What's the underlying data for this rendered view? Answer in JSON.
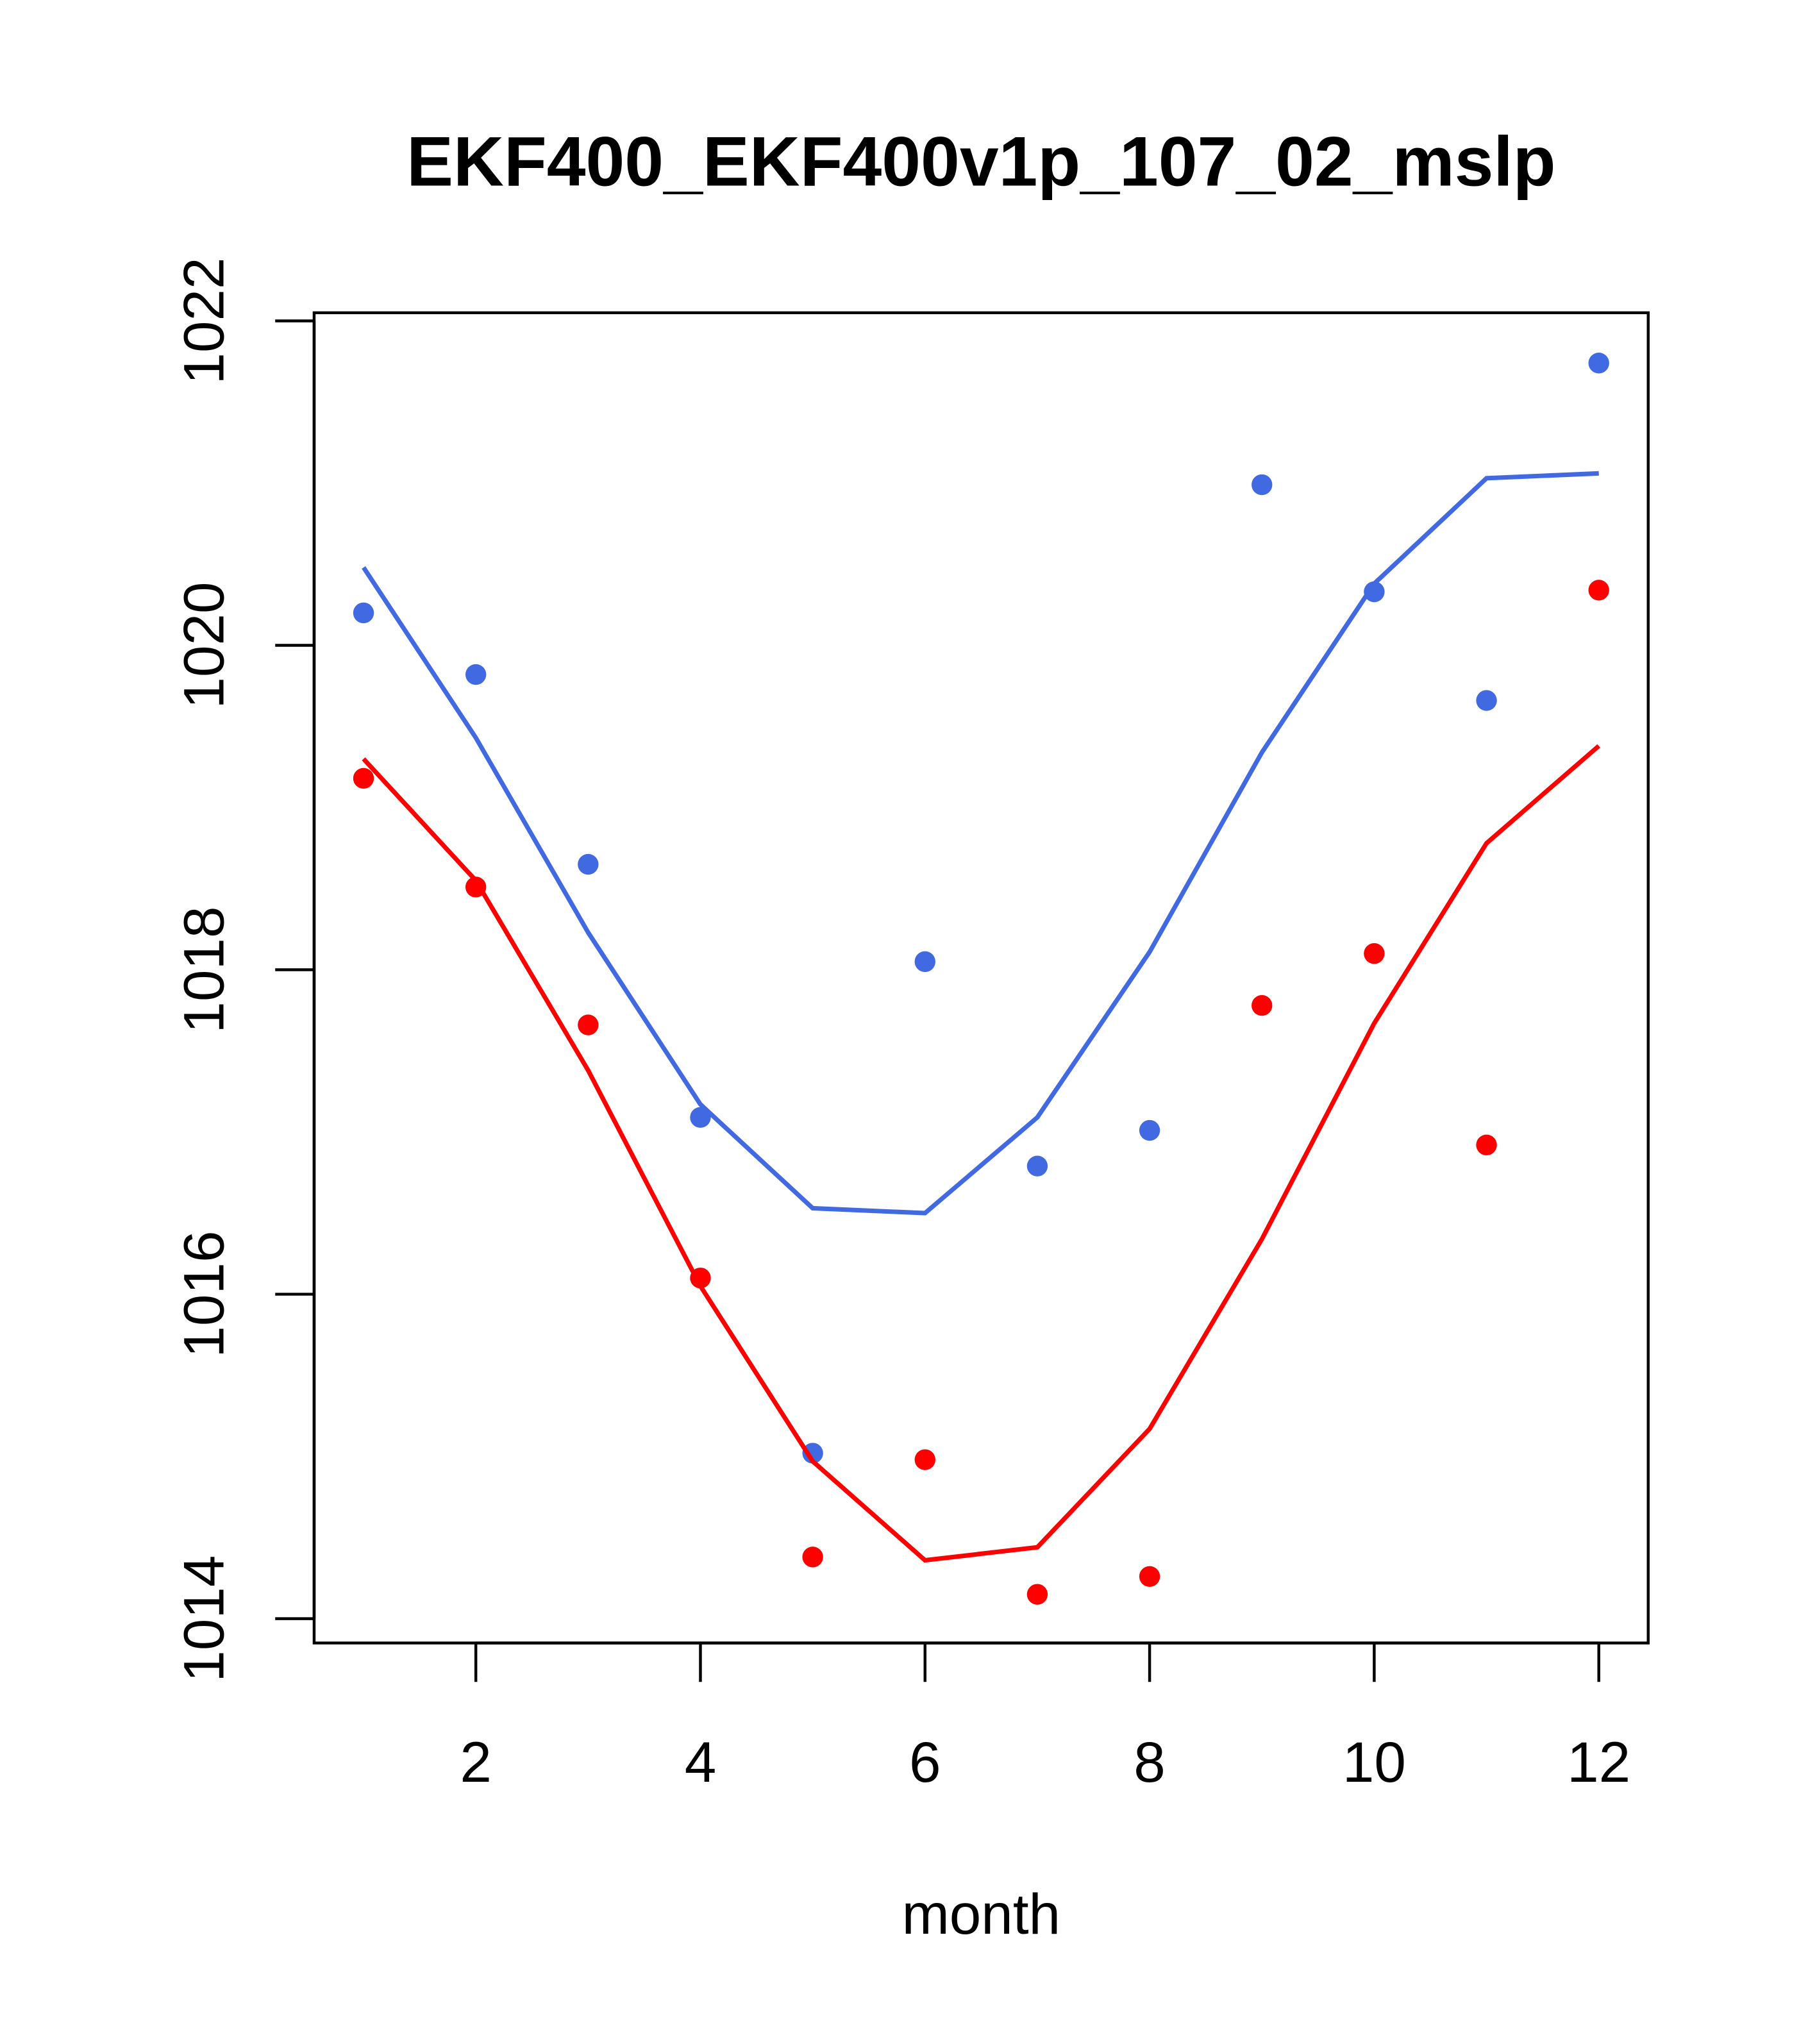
{
  "chart_data": {
    "type": "line",
    "title": "EKF400_EKF400v1p_107_02_mslp",
    "xlabel": "month",
    "ylabel": "",
    "xlim": [
      0.56,
      12.44
    ],
    "ylim": [
      1013.85,
      1022.05
    ],
    "x_ticks": [
      2,
      4,
      6,
      8,
      10,
      12
    ],
    "x_tick_labels": [
      "2",
      "4",
      "6",
      "8",
      "10",
      "12"
    ],
    "y_ticks": [
      1014,
      1016,
      1018,
      1020,
      1022
    ],
    "y_tick_labels": [
      "1014",
      "1016",
      "1018",
      "1020",
      "1022"
    ],
    "grid": false,
    "x": [
      1,
      2,
      3,
      4,
      5,
      6,
      7,
      8,
      9,
      10,
      11,
      12
    ],
    "series": [
      {
        "name": "blue points",
        "kind": "points",
        "color": "#4169e1",
        "values": [
          1020.2,
          1019.82,
          1018.65,
          1017.09,
          1015.02,
          1018.05,
          1016.79,
          1017.01,
          1020.99,
          1020.33,
          1019.66,
          1021.74
        ]
      },
      {
        "name": "red points",
        "kind": "points",
        "color": "#ff0000",
        "values": [
          1019.18,
          1018.51,
          1017.66,
          1016.1,
          1014.38,
          1014.98,
          1014.15,
          1014.26,
          1017.78,
          1018.1,
          1016.92,
          1020.34
        ]
      },
      {
        "name": "blue line",
        "kind": "line",
        "color": "#4169e1",
        "values": [
          1020.48,
          1019.43,
          1018.23,
          1017.17,
          1016.53,
          1016.5,
          1017.09,
          1018.11,
          1019.34,
          1020.38,
          1021.03,
          1021.06
        ]
      },
      {
        "name": "red line",
        "kind": "line",
        "color": "#ff0000",
        "values": [
          1019.3,
          1018.55,
          1017.38,
          1016.05,
          1014.97,
          1014.36,
          1014.44,
          1015.17,
          1016.34,
          1017.67,
          1018.78,
          1019.38
        ]
      }
    ]
  }
}
